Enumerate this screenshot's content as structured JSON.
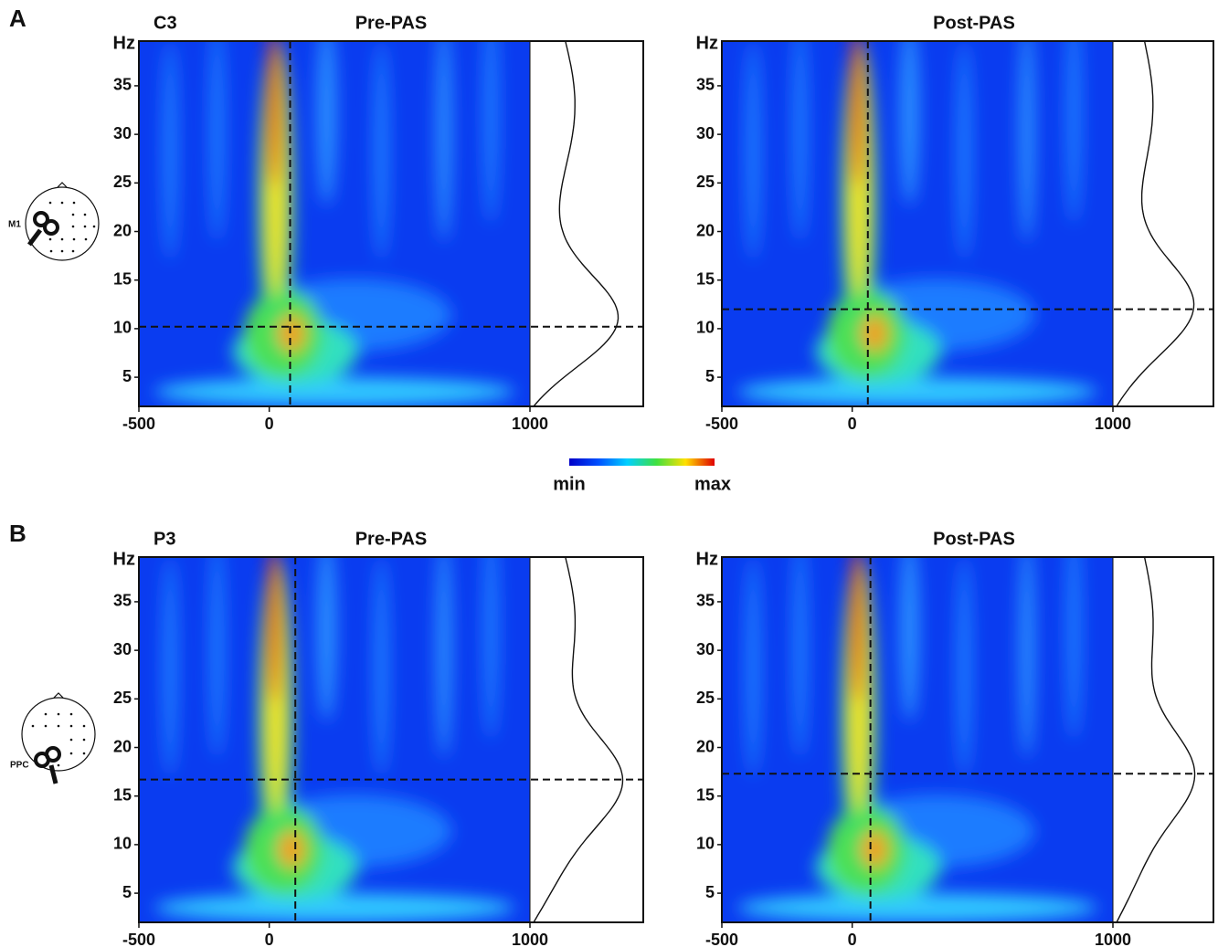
{
  "figure": {
    "panels": [
      {
        "label": "A",
        "site": "M1"
      },
      {
        "label": "B",
        "site": "PPC"
      }
    ],
    "colorbar": {
      "min_label": "min",
      "max_label": "max"
    }
  },
  "chart_data": [
    {
      "type": "heatmap",
      "channel": "C3",
      "title": "Pre-PAS",
      "y_label": "Hz",
      "xlim": [
        -500,
        1000
      ],
      "xticks": [
        -500,
        0,
        1000
      ],
      "ylim": [
        2,
        39.6
      ],
      "yticks": [
        5,
        10,
        15,
        20,
        25,
        30,
        35
      ],
      "marker_time": 80,
      "marker_freq": 10.2
    },
    {
      "type": "heatmap",
      "title": "Post-PAS",
      "y_label": "Hz",
      "xlim": [
        -500,
        1000
      ],
      "xticks": [
        -500,
        0,
        1000
      ],
      "ylim": [
        2,
        39.6
      ],
      "yticks": [
        5,
        10,
        15,
        20,
        25,
        30,
        35
      ],
      "marker_time": 60,
      "marker_freq": 12
    },
    {
      "type": "heatmap",
      "channel": "P3",
      "title": "Pre-PAS",
      "y_label": "Hz",
      "xlim": [
        -500,
        1000
      ],
      "xticks": [
        -500,
        0,
        1000
      ],
      "ylim": [
        2,
        39.6
      ],
      "yticks": [
        5,
        10,
        15,
        20,
        25,
        30,
        35
      ],
      "marker_time": 100,
      "marker_freq": 16.7
    },
    {
      "type": "heatmap",
      "title": "Post-PAS",
      "y_label": "Hz",
      "xlim": [
        -500,
        1000
      ],
      "xticks": [
        -500,
        0,
        1000
      ],
      "ylim": [
        2,
        39.6
      ],
      "yticks": [
        5,
        10,
        15,
        20,
        25,
        30,
        35
      ],
      "marker_time": 70,
      "marker_freq": 17.3
    }
  ]
}
